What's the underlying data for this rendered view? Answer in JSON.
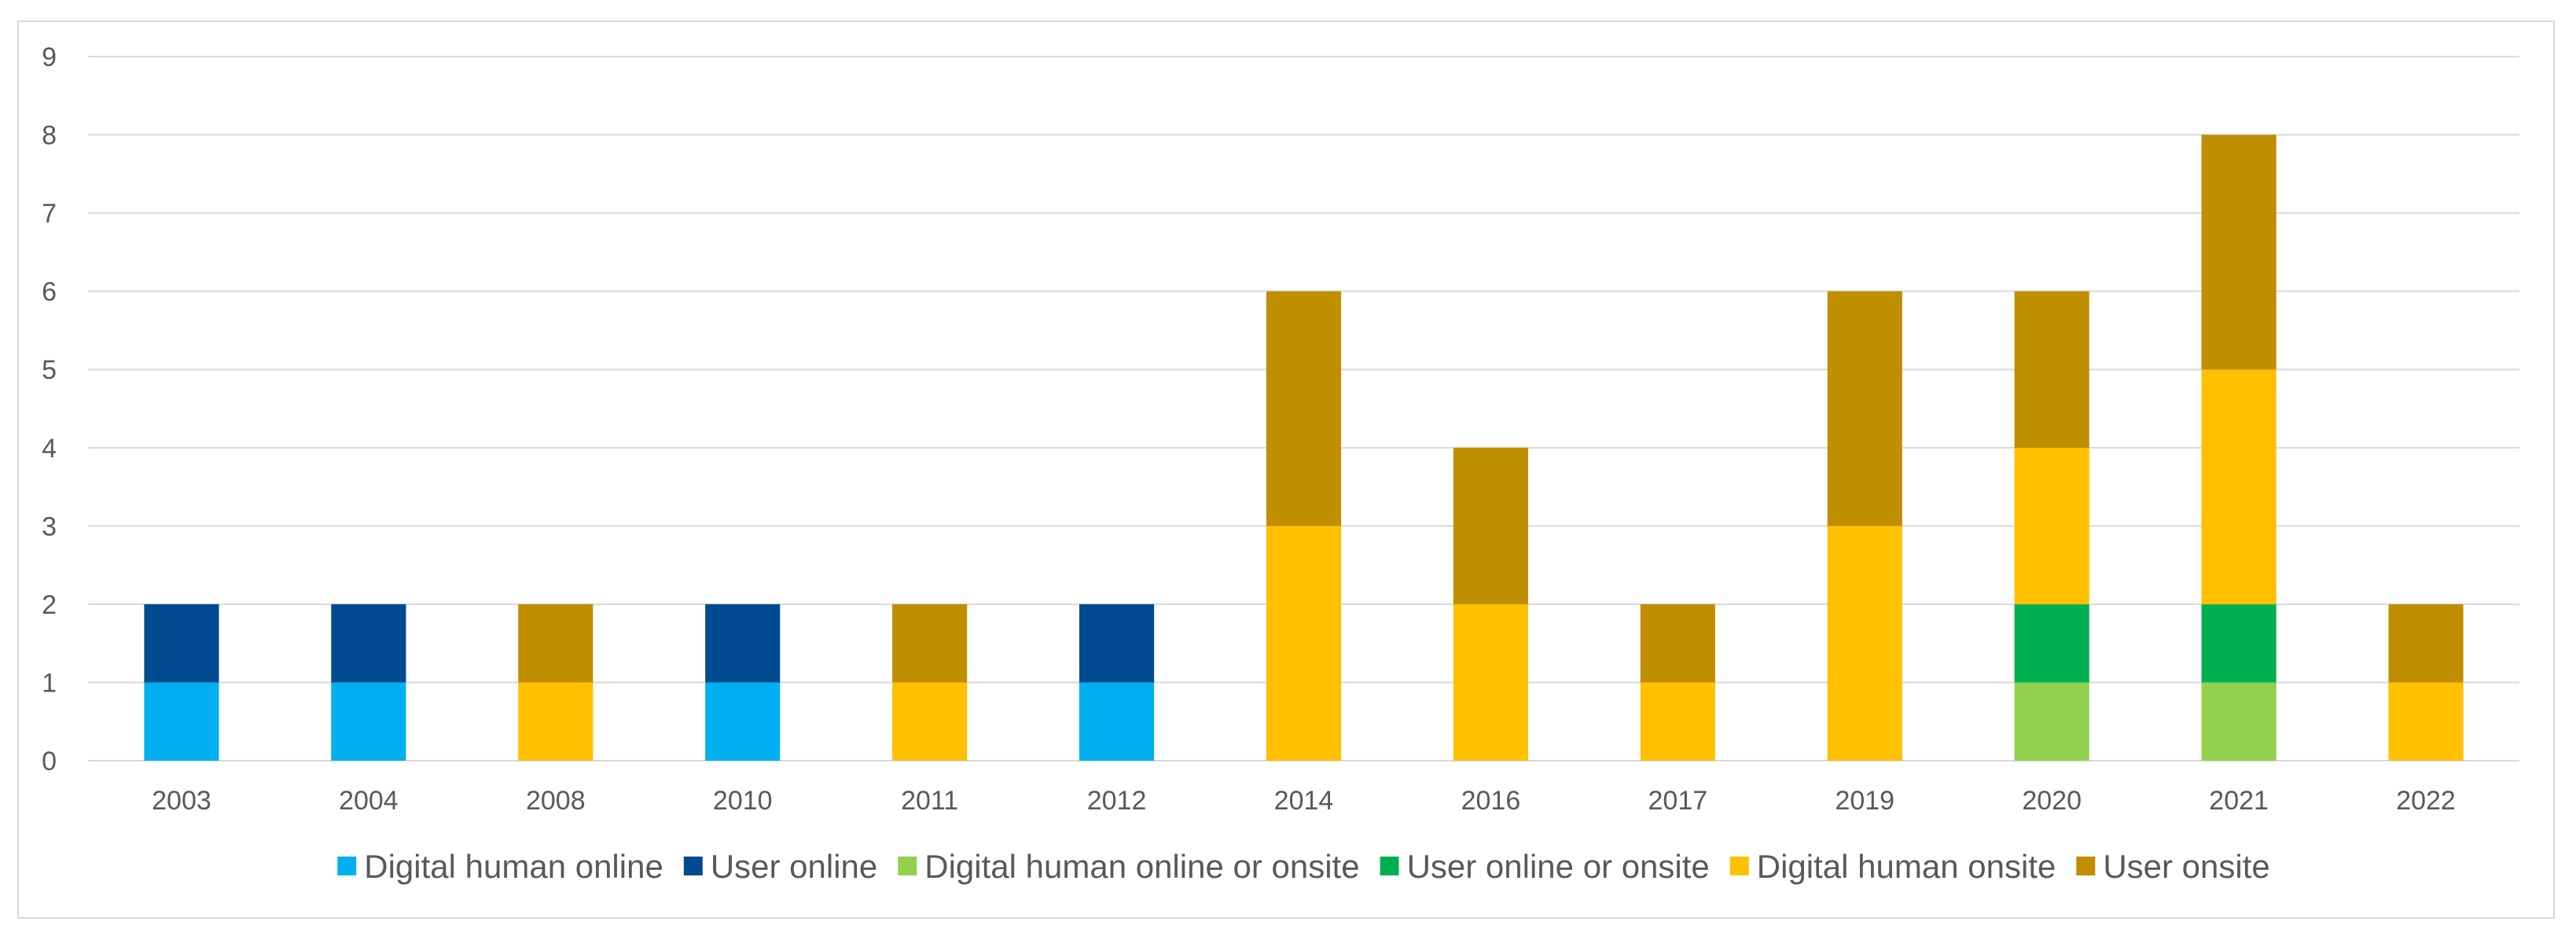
{
  "chart_data": {
    "type": "bar",
    "stacked": true,
    "title": "",
    "xlabel": "",
    "ylabel": "",
    "ylim": [
      0,
      9
    ],
    "yticks": [
      0,
      1,
      2,
      3,
      4,
      5,
      6,
      7,
      8,
      9
    ],
    "grid": true,
    "legend_position": "bottom",
    "categories": [
      "2003",
      "2004",
      "2008",
      "2010",
      "2011",
      "2012",
      "2014",
      "2016",
      "2017",
      "2019",
      "2020",
      "2021",
      "2022"
    ],
    "series": [
      {
        "name": "Digital human online",
        "color": "#00b0f0",
        "values": [
          1,
          1,
          0,
          1,
          0,
          1,
          0,
          0,
          0,
          0,
          0,
          0,
          0
        ]
      },
      {
        "name": "User online",
        "color": "#004a8f",
        "values": [
          1,
          1,
          0,
          1,
          0,
          1,
          0,
          0,
          0,
          0,
          0,
          0,
          0
        ]
      },
      {
        "name": "Digital human online or onsite",
        "color": "#92d050",
        "values": [
          0,
          0,
          0,
          0,
          0,
          0,
          0,
          0,
          0,
          0,
          1,
          1,
          0
        ]
      },
      {
        "name": "User online or onsite",
        "color": "#00b050",
        "values": [
          0,
          0,
          0,
          0,
          0,
          0,
          0,
          0,
          0,
          0,
          1,
          1,
          0
        ]
      },
      {
        "name": "Digital human onsite",
        "color": "#ffc000",
        "values": [
          0,
          0,
          1,
          0,
          1,
          0,
          3,
          2,
          1,
          3,
          2,
          3,
          1
        ]
      },
      {
        "name": "User onsite",
        "color": "#bf8f00",
        "values": [
          0,
          0,
          1,
          0,
          1,
          0,
          3,
          2,
          1,
          3,
          2,
          3,
          1
        ]
      }
    ]
  }
}
